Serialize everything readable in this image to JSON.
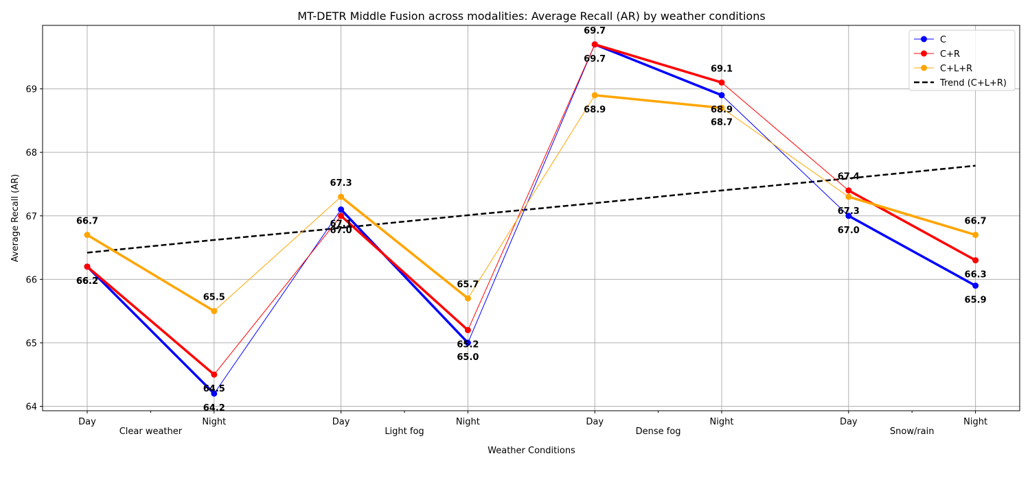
{
  "chart_data": {
    "type": "line",
    "title": "MT-DETR Middle Fusion across modalities: Average Recall (AR) by weather conditions",
    "xlabel": "Weather Conditions",
    "ylabel": "Average Recall (AR)",
    "categories": [
      "Day",
      "Night",
      "Day",
      "Night",
      "Day",
      "Night",
      "Day",
      "Night"
    ],
    "groups": [
      "Clear weather",
      "Light fog",
      "Dense fog",
      "Snow/rain"
    ],
    "ylim": [
      63.93,
      70.0
    ],
    "yticks": [
      64,
      65,
      66,
      67,
      68,
      69
    ],
    "grid": true,
    "legend_position": "top-right",
    "series": [
      {
        "name": "C",
        "color": "#0000ff",
        "values": [
          66.2,
          64.2,
          67.1,
          65.0,
          69.7,
          68.9,
          67.0,
          65.9
        ]
      },
      {
        "name": "C+R",
        "color": "#ff0000",
        "values": [
          66.2,
          64.5,
          67.0,
          65.2,
          69.7,
          69.1,
          67.4,
          66.3
        ]
      },
      {
        "name": "C+L+R",
        "color": "#ffa500",
        "values": [
          66.7,
          65.5,
          67.3,
          65.7,
          68.9,
          68.7,
          67.3,
          66.7
        ]
      }
    ],
    "trend": {
      "name": "Trend (C+L+R)",
      "color": "#000000",
      "values": [
        66.42,
        66.62,
        66.81,
        67.01,
        67.2,
        67.4,
        67.59,
        67.79
      ]
    }
  }
}
